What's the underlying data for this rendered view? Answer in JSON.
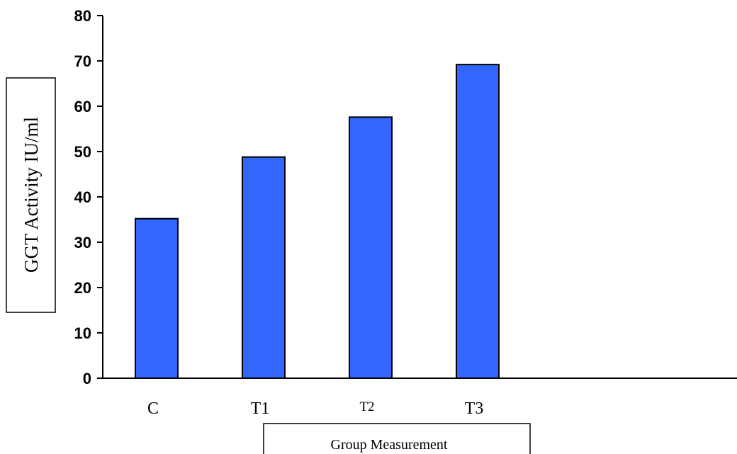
{
  "chart_data": {
    "type": "bar",
    "categories": [
      "C",
      "T1",
      "T2",
      "T3"
    ],
    "values": [
      35.2,
      48.8,
      57.6,
      69.2
    ],
    "ylabel": "GGT Activity IU/ml",
    "xlabel": "Group Measurement",
    "ylim": [
      0,
      80
    ],
    "yticks": [
      0,
      10,
      20,
      30,
      40,
      50,
      60,
      70,
      80
    ],
    "grid": false,
    "legend": "none",
    "bar_color": "#3366ff",
    "bar_edge_color": "#000000"
  }
}
